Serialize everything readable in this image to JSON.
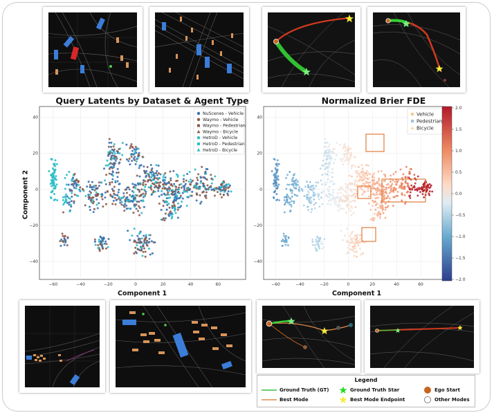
{
  "left_plot": {
    "title": "Query Latents by Dataset & Agent Type",
    "xlabel": "Component 1",
    "ylabel": "Component 2",
    "xticks": [
      "−60",
      "−40",
      "−20",
      "0",
      "20",
      "40",
      "60"
    ],
    "yticks": [
      "40",
      "20",
      "0",
      "−20",
      "−40"
    ],
    "legend": [
      {
        "label": "NuScenes - Vehicle",
        "color": "#3a6fb0",
        "marker": "circle"
      },
      {
        "label": "Waymo - Vehicle",
        "color": "#8b5a4a",
        "marker": "circle"
      },
      {
        "label": "Waymo - Pedestrian",
        "color": "#8b5a4a",
        "marker": "square"
      },
      {
        "label": "Waymo - Bicycle",
        "color": "#8b5a4a",
        "marker": "triangle"
      },
      {
        "label": "HetroD - Vehicle",
        "color": "#2bbdc7",
        "marker": "circle"
      },
      {
        "label": "HetroD - Pedestrian",
        "color": "#2bbdc7",
        "marker": "square"
      },
      {
        "label": "HetroD - Bicycle",
        "color": "#2bbdc7",
        "marker": "triangle"
      }
    ]
  },
  "right_plot": {
    "title": "Normalized Brier FDE",
    "xlabel": "Component 1",
    "xticks": [
      "−60",
      "−40",
      "−20",
      "0",
      "20",
      "40",
      "60"
    ],
    "yticks": [
      "40",
      "20",
      "0",
      "−20",
      "−40"
    ],
    "legend": [
      {
        "label": "Vehicle",
        "marker": "circle"
      },
      {
        "label": "Pedestrian",
        "marker": "square"
      },
      {
        "label": "Bicycle",
        "marker": "triangle"
      }
    ],
    "colorbar_ticks": [
      "2.0",
      "1.5",
      "1.0",
      "0.5",
      "0.0",
      "−0.5",
      "−1.0",
      "−1.5",
      "−2.0"
    ]
  },
  "legend": {
    "title": "Legend",
    "items": [
      {
        "label": "Ground Truth (GT)",
        "type": "line",
        "color": "#3dbb3d"
      },
      {
        "label": "Ground Truth Star",
        "type": "star",
        "color": "#22dd22"
      },
      {
        "label": "Ego Start",
        "type": "dot",
        "color": "#c8651e"
      },
      {
        "label": "Best Mode",
        "type": "line",
        "color": "#e08a4a"
      },
      {
        "label": "Best Mode Endpoint",
        "type": "star",
        "color": "#f6e93a"
      },
      {
        "label": "Other Modes",
        "type": "ring",
        "color": "#888888"
      }
    ]
  },
  "colors": {
    "accent_box": "#e07b39",
    "frame": "#c9c9c9"
  }
}
